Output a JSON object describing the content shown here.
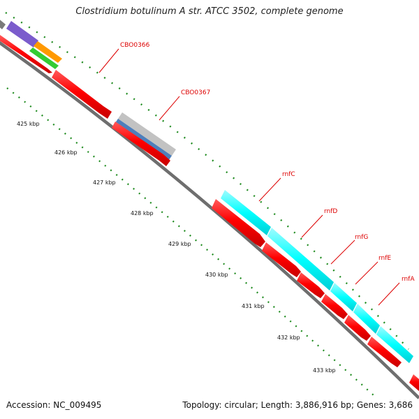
{
  "title": "Clostridium botulinum A str. ATCC 3502, complete genome",
  "footer": {
    "accession": "Accession: NC_009495",
    "stats": "Topology: circular; Length: 3,886,916 bp; Genes: 3,686"
  },
  "scale_labels": [
    "425 kbp",
    "426 kbp",
    "427 kbp",
    "428 kbp",
    "429 kbp",
    "430 kbp",
    "431 kbp",
    "432 kbp",
    "433 kbp"
  ],
  "gene_labels": [
    "CBO0366",
    "CBO0367",
    "rnfC",
    "rnfD",
    "rnfG",
    "rnfE",
    "rnfA"
  ],
  "colors": {
    "cds_forward": "#ff0000",
    "rnf_complex": "#00ffff",
    "backbone": "#888888",
    "ticks": "#228b22",
    "labels": "#dd0000"
  }
}
